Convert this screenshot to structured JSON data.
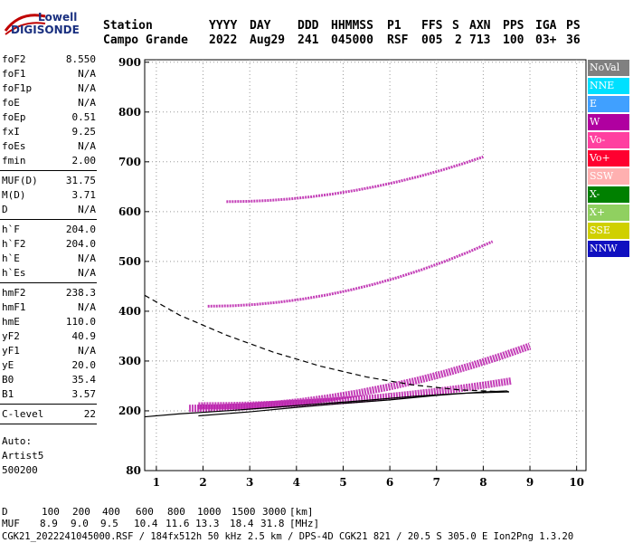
{
  "logo": {
    "line1": "Lowell",
    "line2": "DIGISONDE"
  },
  "header": {
    "labels": [
      "Station",
      "YYYY",
      "DAY",
      "DDD",
      "HHMMSS",
      "P1",
      "FFS",
      "S",
      "AXN",
      "PPS",
      "IGA",
      "PS"
    ],
    "values": [
      "Campo Grande",
      "2022",
      "Aug29",
      "241",
      "045000",
      "RSF",
      "005",
      "2",
      "713",
      "100",
      "03+",
      "36"
    ]
  },
  "params": {
    "groups": [
      [
        [
          "foF2",
          "8.550"
        ],
        [
          "foF1",
          "N/A"
        ],
        [
          "foF1p",
          "N/A"
        ],
        [
          "foE",
          "N/A"
        ],
        [
          "foEp",
          "0.51"
        ],
        [
          "fxI",
          "9.25"
        ],
        [
          "foEs",
          "N/A"
        ],
        [
          "fmin",
          "2.00"
        ]
      ],
      [
        [
          "MUF(D)",
          "31.75"
        ],
        [
          "M(D)",
          "3.71"
        ],
        [
          "D",
          "N/A"
        ]
      ],
      [
        [
          "h`F",
          "204.0"
        ],
        [
          "h`F2",
          "204.0"
        ],
        [
          "h`E",
          "N/A"
        ],
        [
          "h`Es",
          "N/A"
        ]
      ],
      [
        [
          "hmF2",
          "238.3"
        ],
        [
          "hmF1",
          "N/A"
        ],
        [
          "hmE",
          "110.0"
        ],
        [
          "yF2",
          "40.9"
        ],
        [
          "yF1",
          "N/A"
        ],
        [
          "yE",
          "20.0"
        ],
        [
          "B0",
          "35.4"
        ],
        [
          "B1",
          "3.57"
        ]
      ],
      [
        [
          "C-level",
          "22"
        ]
      ]
    ],
    "auto_label": "Auto:",
    "artist": "Artist5",
    "version": "500200"
  },
  "legend": [
    {
      "label": "NoVal",
      "color": "#808080",
      "text": "#ffffff"
    },
    {
      "label": "NNE",
      "color": "#00e0ff",
      "text": "#ffffff"
    },
    {
      "label": "E",
      "color": "#40a0ff",
      "text": "#ffffff"
    },
    {
      "label": "W",
      "color": "#b000a0",
      "text": "#ffffff"
    },
    {
      "label": "Vo-",
      "color": "#ff40a0",
      "text": "#ffffff"
    },
    {
      "label": "Vo+",
      "color": "#ff0030",
      "text": "#ffffff"
    },
    {
      "label": "SSW",
      "color": "#ffb0b0",
      "text": "#ffffff"
    },
    {
      "label": "X-",
      "color": "#008000",
      "text": "#ffffff"
    },
    {
      "label": "X+",
      "color": "#90d060",
      "text": "#ffffff"
    },
    {
      "label": "SSE",
      "color": "#d0d000",
      "text": "#ffffff"
    },
    {
      "label": "NNW",
      "color": "#1010c0",
      "text": "#ffffff"
    }
  ],
  "chart_data": {
    "type": "scatter",
    "title": "",
    "xlabel": "",
    "ylabel": "",
    "xlim": [
      0.75,
      10.2
    ],
    "ylim": [
      80,
      905
    ],
    "xticks": [
      1,
      2,
      3,
      4,
      5,
      6,
      7,
      8,
      9,
      10
    ],
    "yticks": [
      80,
      200,
      300,
      400,
      500,
      600,
      700,
      800,
      900
    ],
    "grid": "dotted",
    "trace_color": "#b000a0",
    "bands": [
      {
        "f0": 2.5,
        "f1": 8.0,
        "h0": 620,
        "h1": 710
      },
      {
        "f0": 2.1,
        "f1": 8.2,
        "h0": 410,
        "h1": 540
      },
      {
        "f0": 1.7,
        "f1": 9.0,
        "h0": 205,
        "h1": 330
      },
      {
        "f0": 1.9,
        "f1": 8.6,
        "h0": 210,
        "h1": 260
      }
    ],
    "profile": {
      "color": "#000000",
      "x": [
        1.9,
        3,
        4,
        5,
        6,
        7,
        8.0,
        8.5,
        8.55
      ],
      "y": [
        190,
        198,
        207,
        215,
        222,
        231,
        238,
        240,
        238
      ]
    },
    "extrapolation": {
      "color": "#000000",
      "x": [
        0.75,
        1.5,
        2.5,
        3.5,
        4.5,
        5.5,
        6.5,
        7.5,
        8.55
      ],
      "y": [
        432,
        392,
        352,
        318,
        290,
        268,
        252,
        242,
        238
      ]
    },
    "lower_curve": {
      "x": [
        0.75,
        1.5,
        2.5,
        3.5,
        4.5,
        5.5,
        6.5,
        7.5,
        8.55
      ],
      "y": [
        188,
        194,
        200,
        207,
        214,
        221,
        229,
        235,
        238
      ]
    }
  },
  "footer": {
    "d_label": "D",
    "d_values": [
      "100",
      "200",
      "400",
      "600",
      "800",
      "1000",
      "1500",
      "3000"
    ],
    "d_unit": "[km]",
    "muf_label": "MUF",
    "muf_values": [
      "8.9",
      "9.0",
      "9.5",
      "10.4",
      "11.6",
      "13.3",
      "18.4",
      "31.8"
    ],
    "muf_unit": "[MHz]",
    "info": "CGK21_2022241045000.RSF / 184fx512h 50 kHz 2.5 km / DPS-4D CGK21 821 / 20.5 S 305.0 E Ion2Png 1.3.20"
  }
}
